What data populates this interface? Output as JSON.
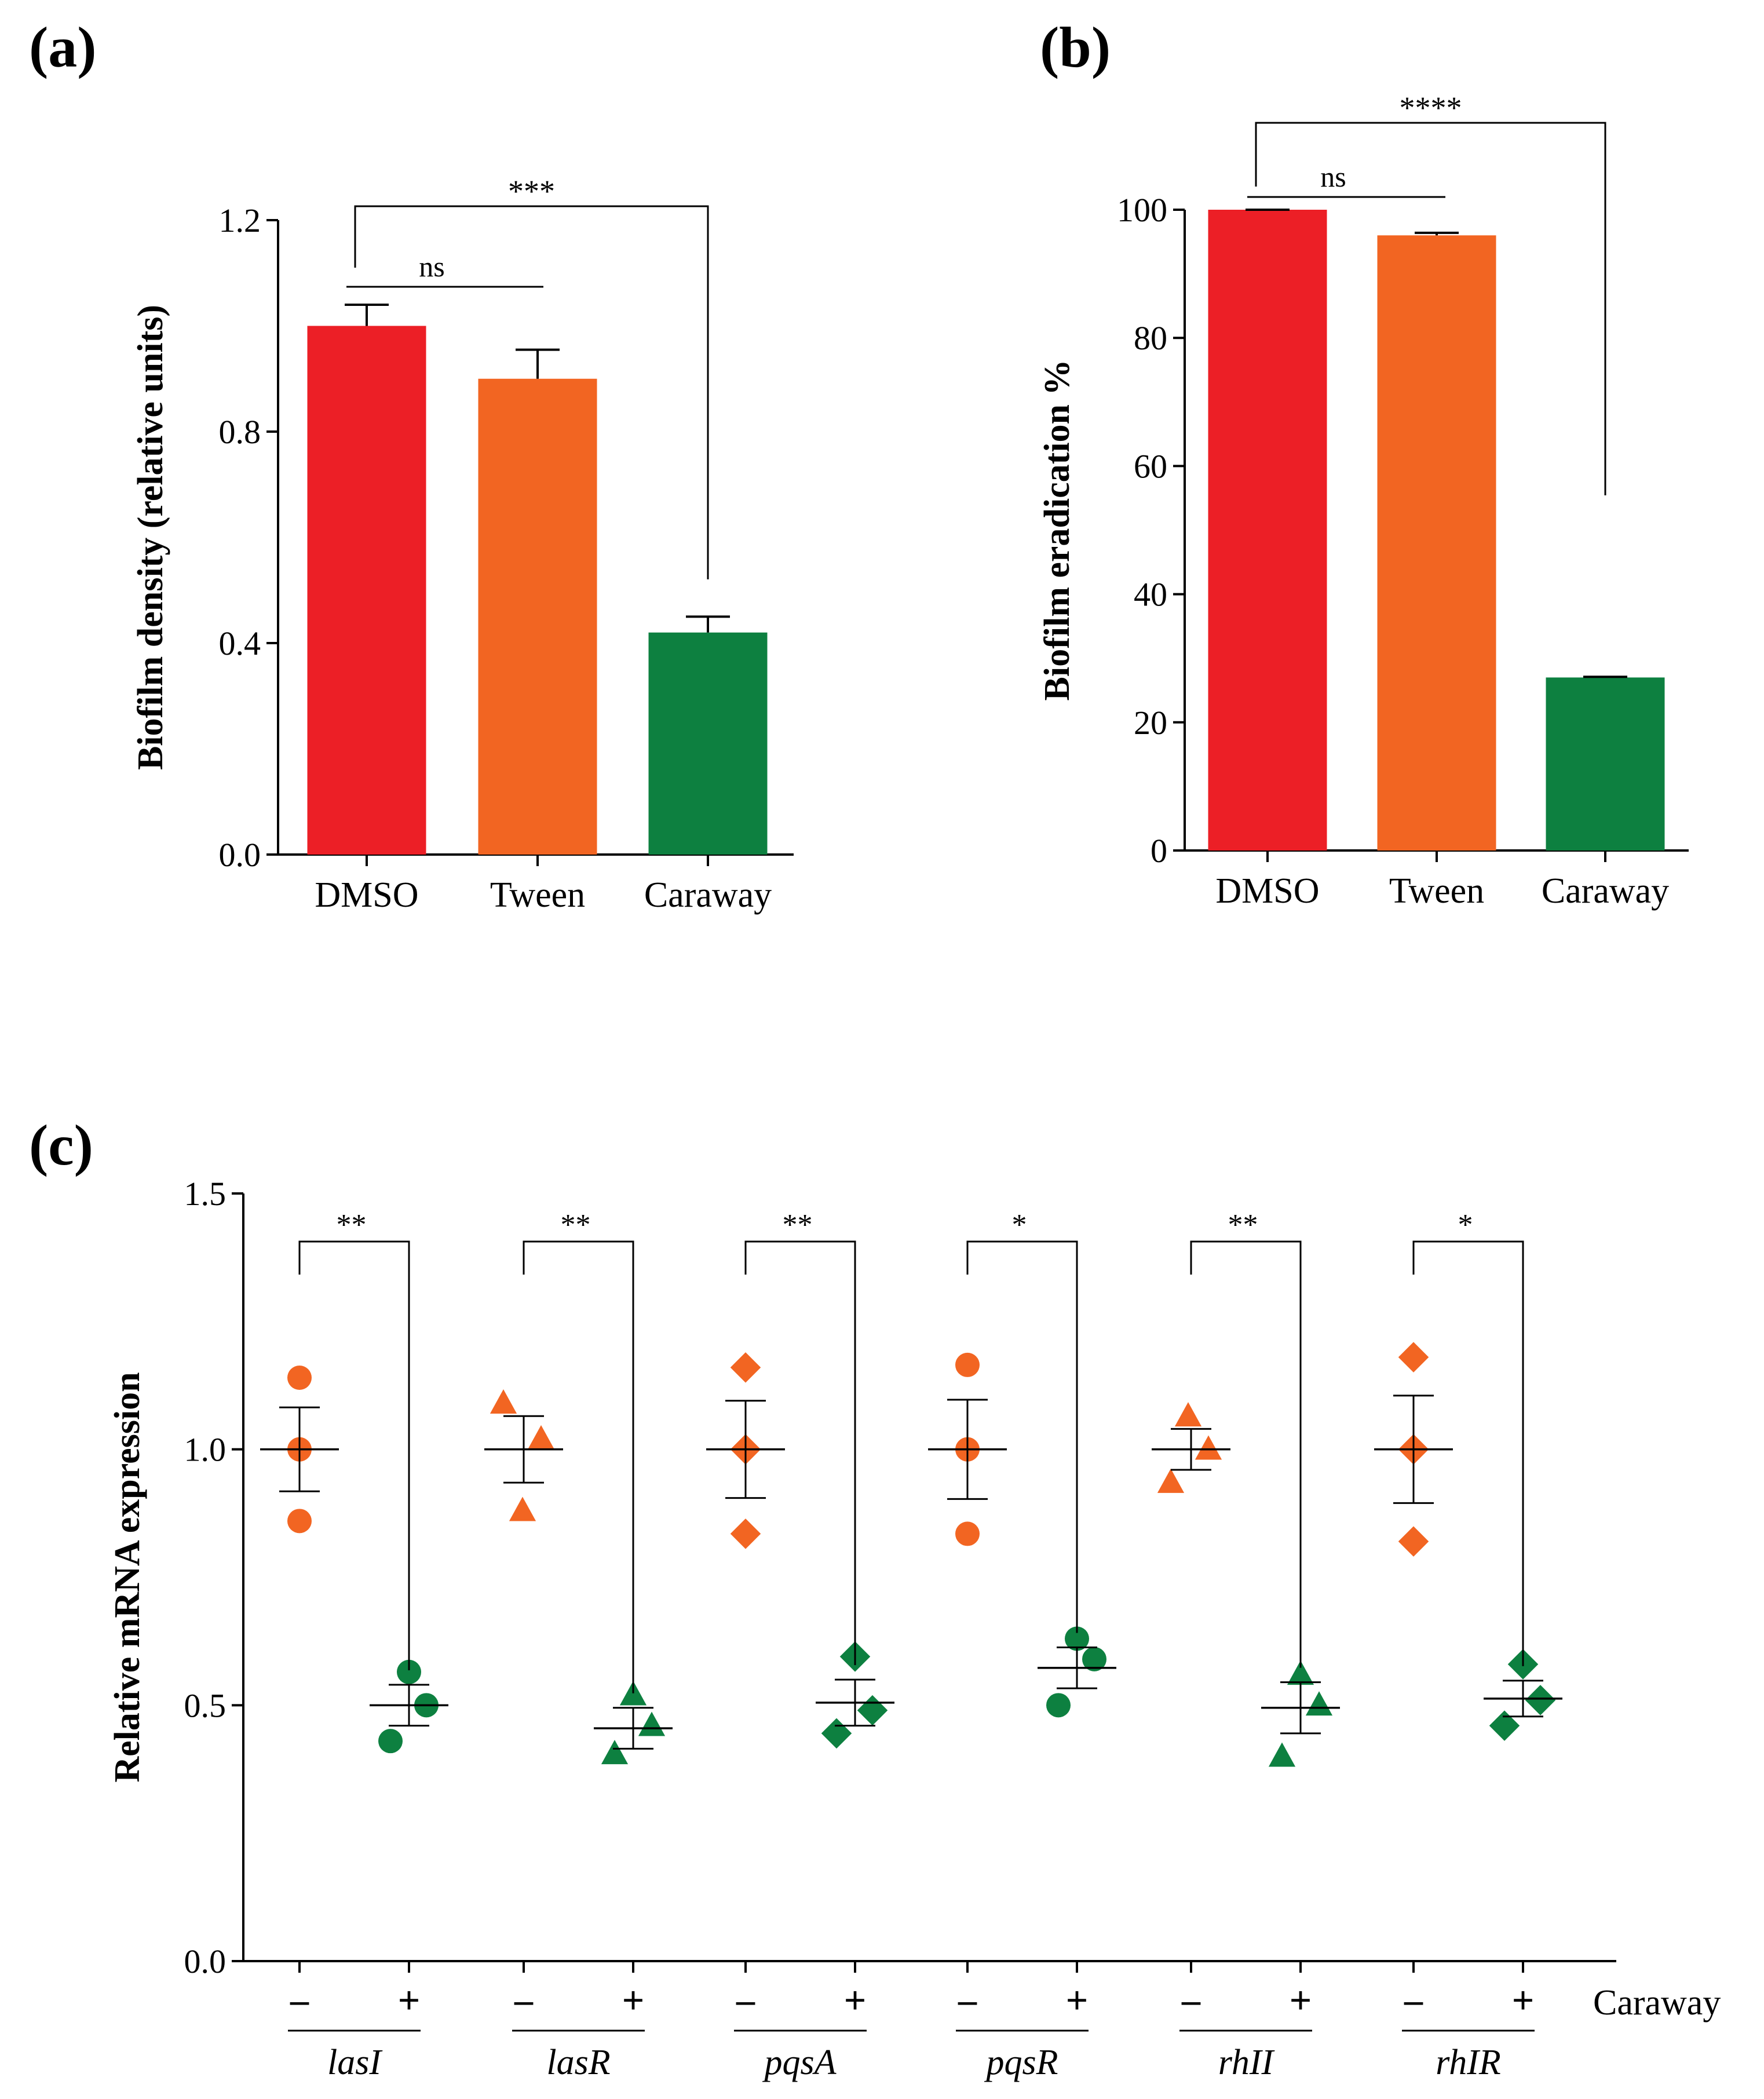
{
  "colors": {
    "dmso": "#ec1f26",
    "tween": "#f26522",
    "caraway": "#0d8040",
    "untreated": "#f26522",
    "treated": "#0d8040",
    "axis": "#000000",
    "caraway_label": "#e0302a"
  },
  "chart_data": [
    {
      "panel": "(a)",
      "type": "bar",
      "categories": [
        "DMSO",
        "Tween",
        "Caraway"
      ],
      "values": [
        1.0,
        0.9,
        0.42
      ],
      "errors": [
        0.04,
        0.055,
        0.03
      ],
      "ylabel": "Biofilm density (relative units)",
      "ylim": [
        0,
        1.2
      ],
      "yticks": [
        "0.0",
        "0.4",
        "0.8",
        "1.2"
      ],
      "ytick_values": [
        0,
        0.4,
        0.8,
        1.2
      ],
      "significance": [
        {
          "from": 0,
          "to": 1,
          "label": "ns"
        },
        {
          "from": 0,
          "to": 2,
          "label": "***"
        }
      ]
    },
    {
      "panel": "(b)",
      "type": "bar",
      "categories": [
        "DMSO",
        "Tween",
        "Caraway"
      ],
      "values": [
        100,
        96,
        27
      ],
      "errors": [
        0,
        0.4,
        0.1
      ],
      "ylabel": "Biofilm eradication %",
      "ylim": [
        0,
        100
      ],
      "yticks": [
        "0",
        "20",
        "40",
        "60",
        "80",
        "100"
      ],
      "ytick_values": [
        0,
        20,
        40,
        60,
        80,
        100
      ],
      "significance": [
        {
          "from": 0,
          "to": 1,
          "label": "ns"
        },
        {
          "from": 0,
          "to": 2,
          "label": "****"
        }
      ]
    },
    {
      "panel": "(c)",
      "type": "scatter",
      "ylabel": "Relative mRNA expression",
      "ylim": [
        0,
        1.5
      ],
      "yticks": [
        "0.0",
        "0.5",
        "1.0",
        "1.5"
      ],
      "ytick_values": [
        0,
        0.5,
        1.0,
        1.5
      ],
      "treatment_label": "Caraway",
      "condition_labels": [
        "–",
        "+"
      ],
      "genes": [
        {
          "name": "lasI",
          "marker": "circle",
          "sig": "**",
          "untreated": {
            "points": [
              1.14,
              1.0,
              0.86
            ],
            "mean": 1.0,
            "sem": 0.082
          },
          "treated": {
            "points": [
              0.565,
              0.5,
              0.43
            ],
            "mean": 0.5,
            "sem": 0.04
          }
        },
        {
          "name": "lasR",
          "marker": "triangle",
          "sig": "**",
          "untreated": {
            "points": [
              1.09,
              1.02,
              0.88
            ],
            "mean": 1.0,
            "sem": 0.065
          },
          "treated": {
            "points": [
              0.52,
              0.46,
              0.405
            ],
            "mean": 0.455,
            "sem": 0.04
          }
        },
        {
          "name": "pqsA",
          "marker": "diamond",
          "sig": "**",
          "untreated": {
            "points": [
              1.16,
              1.0,
              0.835
            ],
            "mean": 1.0,
            "sem": 0.095
          },
          "treated": {
            "points": [
              0.595,
              0.49,
              0.445
            ],
            "mean": 0.505,
            "sem": 0.045
          }
        },
        {
          "name": "pqsR",
          "marker": "circle",
          "sig": "*",
          "untreated": {
            "points": [
              1.165,
              1.0,
              0.835
            ],
            "mean": 1.0,
            "sem": 0.097
          },
          "treated": {
            "points": [
              0.63,
              0.59,
              0.5
            ],
            "mean": 0.573,
            "sem": 0.04
          }
        },
        {
          "name": "rhII",
          "marker": "triangle",
          "sig": "**",
          "untreated": {
            "points": [
              1.065,
              1.0,
              0.935
            ],
            "mean": 1.0,
            "sem": 0.04
          },
          "treated": {
            "points": [
              0.56,
              0.5,
              0.4
            ],
            "mean": 0.495,
            "sem": 0.05
          }
        },
        {
          "name": "rhIR",
          "marker": "diamond",
          "sig": "*",
          "untreated": {
            "points": [
              1.18,
              1.0,
              0.82
            ],
            "mean": 1.0,
            "sem": 0.105
          },
          "treated": {
            "points": [
              0.58,
              0.51,
              0.46
            ],
            "mean": 0.513,
            "sem": 0.035
          }
        }
      ]
    }
  ]
}
